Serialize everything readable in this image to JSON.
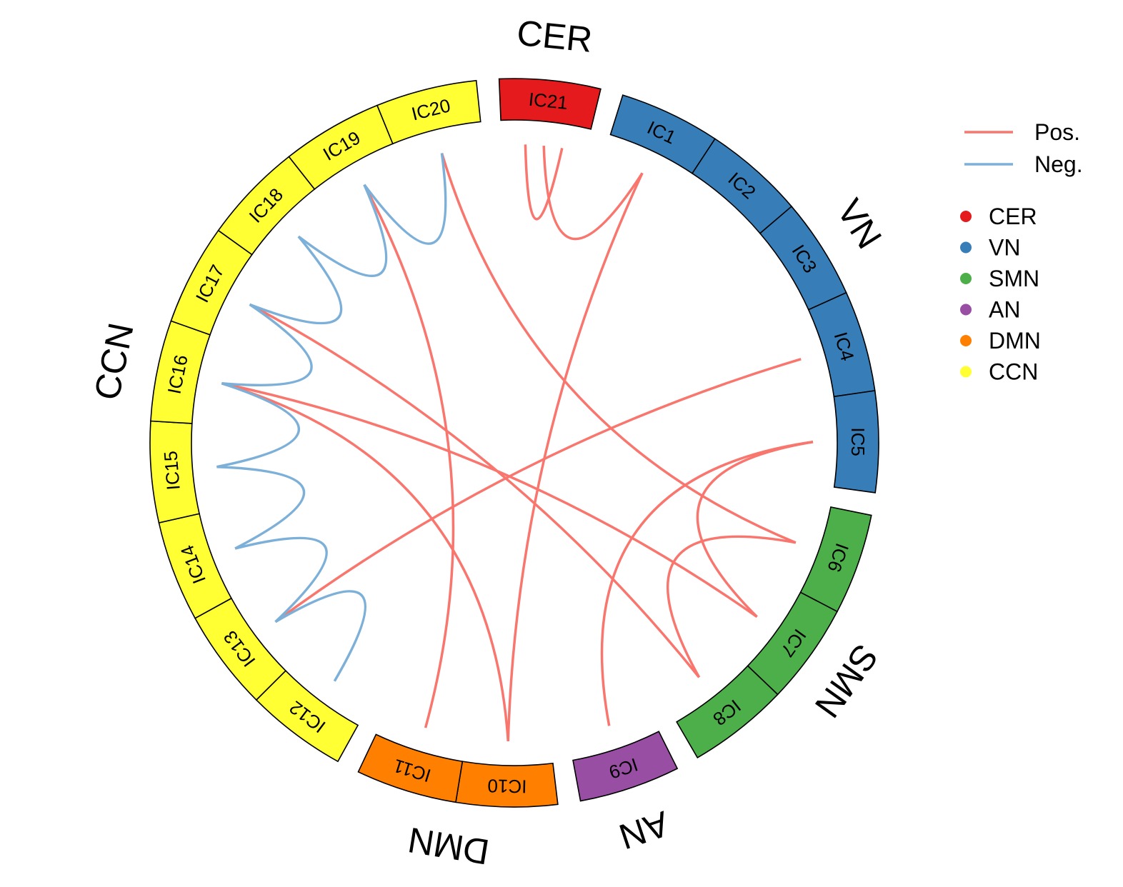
{
  "chart_data": {
    "type": "chord",
    "networks": [
      {
        "name": "CER",
        "color": "#E41A1C",
        "components": [
          "IC21"
        ]
      },
      {
        "name": "VN",
        "color": "#377EB8",
        "components": [
          "IC1",
          "IC2",
          "IC3",
          "IC4",
          "IC5"
        ]
      },
      {
        "name": "SMN",
        "color": "#4DAF4A",
        "components": [
          "IC6",
          "IC7",
          "IC8"
        ]
      },
      {
        "name": "AN",
        "color": "#984EA3",
        "components": [
          "IC9"
        ]
      },
      {
        "name": "DMN",
        "color": "#FF7F00",
        "components": [
          "IC10",
          "IC11"
        ]
      },
      {
        "name": "CCN",
        "color": "#FFFF33",
        "components": [
          "IC12",
          "IC13",
          "IC14",
          "IC15",
          "IC16",
          "IC17",
          "IC18",
          "IC19",
          "IC20"
        ]
      }
    ],
    "links": [
      {
        "from": "IC21",
        "to": "IC21",
        "sign": "Pos."
      },
      {
        "from": "IC21",
        "to": "IC1",
        "sign": "Pos."
      },
      {
        "from": "IC20",
        "to": "IC6",
        "sign": "Pos."
      },
      {
        "from": "IC19",
        "to": "IC11",
        "sign": "Pos."
      },
      {
        "from": "IC16",
        "to": "IC7",
        "sign": "Pos."
      },
      {
        "from": "IC16",
        "to": "IC10",
        "sign": "Pos."
      },
      {
        "from": "IC17",
        "to": "IC8",
        "sign": "Pos."
      },
      {
        "from": "IC13",
        "to": "IC4",
        "sign": "Pos."
      },
      {
        "from": "IC1",
        "to": "IC10",
        "sign": "Pos."
      },
      {
        "from": "IC5",
        "to": "IC7",
        "sign": "Pos."
      },
      {
        "from": "IC5",
        "to": "IC9",
        "sign": "Pos."
      },
      {
        "from": "IC6",
        "to": "IC8",
        "sign": "Pos."
      },
      {
        "from": "IC20",
        "to": "IC19",
        "sign": "Neg."
      },
      {
        "from": "IC19",
        "to": "IC18",
        "sign": "Neg."
      },
      {
        "from": "IC18",
        "to": "IC17",
        "sign": "Neg."
      },
      {
        "from": "IC17",
        "to": "IC16",
        "sign": "Neg."
      },
      {
        "from": "IC16",
        "to": "IC15",
        "sign": "Neg."
      },
      {
        "from": "IC15",
        "to": "IC14",
        "sign": "Neg."
      },
      {
        "from": "IC14",
        "to": "IC13",
        "sign": "Neg."
      },
      {
        "from": "IC13",
        "to": "IC12",
        "sign": "Neg."
      }
    ],
    "link_colors": {
      "Pos.": "#F8766D",
      "Neg.": "#7DB0D8"
    },
    "legend": {
      "lines": [
        {
          "label": "Pos.",
          "color": "#F8766D"
        },
        {
          "label": "Neg.",
          "color": "#7DB0D8"
        }
      ],
      "points": [
        {
          "label": "CER",
          "color": "#E41A1C"
        },
        {
          "label": "VN",
          "color": "#377EB8"
        },
        {
          "label": "SMN",
          "color": "#4DAF4A"
        },
        {
          "label": "AN",
          "color": "#984EA3"
        },
        {
          "label": "DMN",
          "color": "#FF7F00"
        },
        {
          "label": "CCN",
          "color": "#FFFF33"
        }
      ],
      "position": "right"
    }
  }
}
